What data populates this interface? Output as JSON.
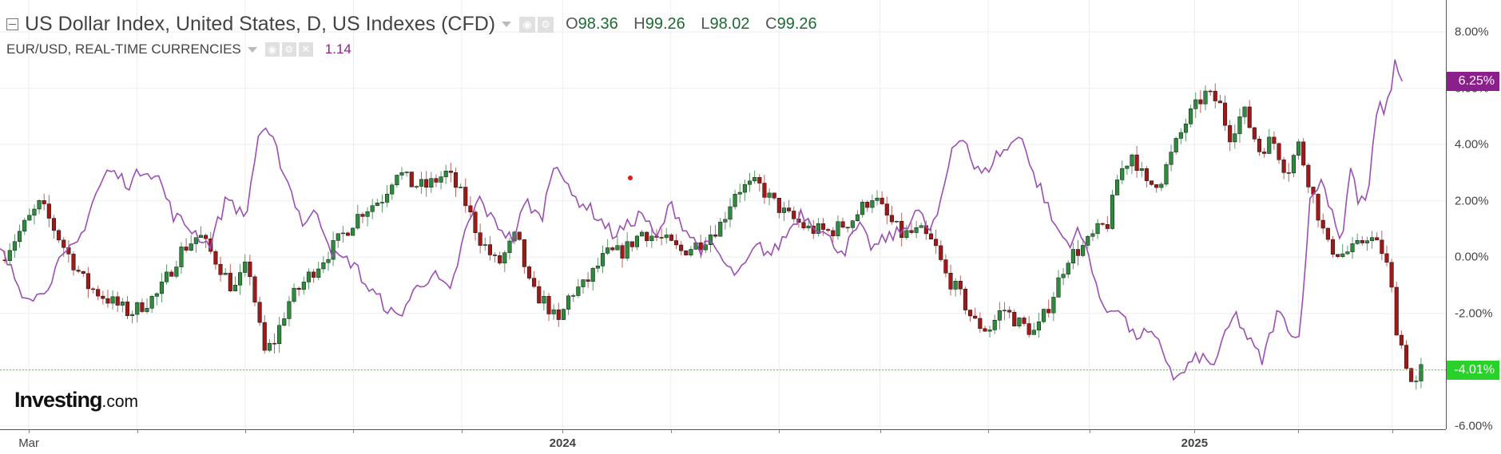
{
  "header": {
    "title": "US Dollar Index, United States, D, US Indexes (CFD)",
    "ohlc": {
      "o_label": "O",
      "o": "98.36",
      "h_label": "H",
      "h": "99.26",
      "l_label": "L",
      "l": "98.02",
      "c_label": "C",
      "c": "99.26"
    }
  },
  "comparison": {
    "label": "EUR/USD, REAL-TIME CURRENCIES",
    "value": "1.14"
  },
  "watermark": {
    "brand": "Investing",
    "suffix": ".com"
  },
  "colors": {
    "up": "#2e8b3e",
    "down": "#a01818",
    "comparison_line": "#9b4fb3",
    "current_line": "#33d633",
    "grid": "#eeeeee"
  },
  "icons": [
    "collapse-icon",
    "settings-icon",
    "hide-icon",
    "close-icon",
    "dropdown-caret-icon"
  ],
  "chart_data": {
    "type": "line",
    "title": "US Dollar Index, United States, D, US Indexes (CFD)",
    "y_scale": "percent",
    "ylim": [
      -6.0,
      8.0
    ],
    "y_ticks": [
      "8.00%",
      "6.00%",
      "4.00%",
      "2.00%",
      "0.00%",
      "-2.00%",
      "-4.00%",
      "-6.00%"
    ],
    "x_ticks": [
      {
        "label": "Mar",
        "t": 0.02,
        "major": false
      },
      {
        "label": "",
        "t": 0.095,
        "major": false
      },
      {
        "label": "",
        "t": 0.17,
        "major": false
      },
      {
        "label": "",
        "t": 0.245,
        "major": false
      },
      {
        "label": "",
        "t": 0.32,
        "major": false
      },
      {
        "label": "2024",
        "t": 0.39,
        "major": true
      },
      {
        "label": "",
        "t": 0.465,
        "major": false
      },
      {
        "label": "",
        "t": 0.54,
        "major": false
      },
      {
        "label": "",
        "t": 0.61,
        "major": false
      },
      {
        "label": "",
        "t": 0.685,
        "major": false
      },
      {
        "label": "",
        "t": 0.755,
        "major": false
      },
      {
        "label": "2025",
        "t": 0.828,
        "major": true
      },
      {
        "label": "",
        "t": 0.9,
        "major": false
      },
      {
        "label": "",
        "t": 0.965,
        "major": false
      }
    ],
    "current_values": {
      "comparison": "6.25%",
      "main": "-4.01%"
    },
    "series": [
      {
        "name": "US Dollar Index",
        "style": "candlestick",
        "anchors": [
          [
            0,
            -0.1
          ],
          [
            0.015,
            1.0
          ],
          [
            0.028,
            1.9
          ],
          [
            0.045,
            0.3
          ],
          [
            0.06,
            -1.0
          ],
          [
            0.075,
            -1.5
          ],
          [
            0.09,
            -2.0
          ],
          [
            0.11,
            -1.3
          ],
          [
            0.125,
            0.2
          ],
          [
            0.138,
            0.8
          ],
          [
            0.152,
            -0.3
          ],
          [
            0.162,
            -1.2
          ],
          [
            0.172,
            -0.2
          ],
          [
            0.183,
            -3.4
          ],
          [
            0.19,
            -3.0
          ],
          [
            0.2,
            -1.6
          ],
          [
            0.215,
            -0.6
          ],
          [
            0.23,
            0.3
          ],
          [
            0.25,
            1.6
          ],
          [
            0.265,
            2.1
          ],
          [
            0.275,
            3.1
          ],
          [
            0.285,
            2.6
          ],
          [
            0.295,
            2.5
          ],
          [
            0.31,
            3.0
          ],
          [
            0.322,
            2.0
          ],
          [
            0.332,
            0.7
          ],
          [
            0.345,
            -0.3
          ],
          [
            0.358,
            0.8
          ],
          [
            0.368,
            -1.2
          ],
          [
            0.378,
            -1.6
          ],
          [
            0.387,
            -2.4
          ],
          [
            0.395,
            -1.3
          ],
          [
            0.405,
            -1.0
          ],
          [
            0.42,
            0.1
          ],
          [
            0.432,
            0.2
          ],
          [
            0.445,
            0.9
          ],
          [
            0.46,
            0.6
          ],
          [
            0.472,
            0.2
          ],
          [
            0.485,
            0.5
          ],
          [
            0.5,
            1.2
          ],
          [
            0.51,
            2.4
          ],
          [
            0.525,
            2.6
          ],
          [
            0.535,
            2.0
          ],
          [
            0.545,
            1.5
          ],
          [
            0.56,
            1.0
          ],
          [
            0.575,
            0.9
          ],
          [
            0.59,
            1.3
          ],
          [
            0.605,
            2.2
          ],
          [
            0.615,
            1.4
          ],
          [
            0.625,
            0.8
          ],
          [
            0.638,
            0.9
          ],
          [
            0.648,
            0.4
          ],
          [
            0.655,
            -0.6
          ],
          [
            0.665,
            -1.3
          ],
          [
            0.675,
            -2.3
          ],
          [
            0.685,
            -2.6
          ],
          [
            0.695,
            -1.8
          ],
          [
            0.705,
            -2.3
          ],
          [
            0.718,
            -2.7
          ],
          [
            0.728,
            -1.6
          ],
          [
            0.74,
            0.0
          ],
          [
            0.752,
            0.4
          ],
          [
            0.762,
            1.0
          ],
          [
            0.768,
            1.2
          ],
          [
            0.775,
            2.9
          ],
          [
            0.785,
            3.7
          ],
          [
            0.795,
            2.5
          ],
          [
            0.805,
            2.8
          ],
          [
            0.815,
            4.0
          ],
          [
            0.823,
            4.9
          ],
          [
            0.835,
            5.8
          ],
          [
            0.845,
            5.5
          ],
          [
            0.852,
            4.3
          ],
          [
            0.862,
            5.2
          ],
          [
            0.873,
            3.8
          ],
          [
            0.882,
            4.2
          ],
          [
            0.892,
            3.0
          ],
          [
            0.9,
            4.0
          ],
          [
            0.91,
            2.2
          ],
          [
            0.92,
            0.4
          ],
          [
            0.93,
            0.1
          ],
          [
            0.94,
            0.3
          ],
          [
            0.948,
            0.8
          ],
          [
            0.958,
            0.2
          ],
          [
            0.963,
            -0.6
          ],
          [
            0.968,
            -2.5
          ],
          [
            0.975,
            -3.8
          ],
          [
            0.98,
            -4.8
          ],
          [
            0.985,
            -4.01
          ]
        ]
      },
      {
        "name": "EUR/USD",
        "style": "line",
        "anchors": [
          [
            0,
            0.3
          ],
          [
            0.015,
            -1.2
          ],
          [
            0.028,
            -1.4
          ],
          [
            0.04,
            -0.3
          ],
          [
            0.055,
            0.6
          ],
          [
            0.065,
            2.1
          ],
          [
            0.075,
            3.1
          ],
          [
            0.09,
            2.6
          ],
          [
            0.1,
            3.2
          ],
          [
            0.11,
            2.8
          ],
          [
            0.12,
            1.5
          ],
          [
            0.135,
            0.9
          ],
          [
            0.145,
            0.4
          ],
          [
            0.158,
            2.2
          ],
          [
            0.17,
            1.3
          ],
          [
            0.18,
            4.6
          ],
          [
            0.19,
            4.0
          ],
          [
            0.2,
            2.6
          ],
          [
            0.21,
            1.2
          ],
          [
            0.22,
            1.6
          ],
          [
            0.232,
            0.0
          ],
          [
            0.245,
            -0.2
          ],
          [
            0.255,
            -1.1
          ],
          [
            0.265,
            -1.6
          ],
          [
            0.275,
            -2.2
          ],
          [
            0.29,
            -1.0
          ],
          [
            0.3,
            -0.6
          ],
          [
            0.312,
            -1.3
          ],
          [
            0.322,
            0.8
          ],
          [
            0.332,
            2.1
          ],
          [
            0.34,
            1.4
          ],
          [
            0.348,
            1.0
          ],
          [
            0.355,
            0.6
          ],
          [
            0.365,
            2.0
          ],
          [
            0.375,
            1.3
          ],
          [
            0.385,
            3.6
          ],
          [
            0.395,
            2.2
          ],
          [
            0.405,
            1.9
          ],
          [
            0.415,
            1.4
          ],
          [
            0.425,
            0.8
          ],
          [
            0.435,
            1.1
          ],
          [
            0.445,
            1.6
          ],
          [
            0.455,
            0.6
          ],
          [
            0.465,
            1.9
          ],
          [
            0.475,
            1.0
          ],
          [
            0.485,
            0.3
          ],
          [
            0.495,
            0.4
          ],
          [
            0.505,
            -0.5
          ],
          [
            0.513,
            -0.6
          ],
          [
            0.525,
            0.4
          ],
          [
            0.535,
            0.1
          ],
          [
            0.545,
            0.8
          ],
          [
            0.555,
            1.6
          ],
          [
            0.565,
            1.2
          ],
          [
            0.575,
            0.6
          ],
          [
            0.585,
            0.2
          ],
          [
            0.595,
            1.1
          ],
          [
            0.605,
            0.3
          ],
          [
            0.615,
            0.7
          ],
          [
            0.625,
            0.9
          ],
          [
            0.635,
            1.7
          ],
          [
            0.645,
            0.9
          ],
          [
            0.652,
            1.8
          ],
          [
            0.66,
            3.9
          ],
          [
            0.668,
            4.4
          ],
          [
            0.675,
            3.2
          ],
          [
            0.682,
            2.9
          ],
          [
            0.69,
            3.6
          ],
          [
            0.7,
            3.9
          ],
          [
            0.708,
            4.5
          ],
          [
            0.715,
            3.0
          ],
          [
            0.722,
            2.4
          ],
          [
            0.73,
            1.2
          ],
          [
            0.74,
            0.5
          ],
          [
            0.748,
            0.9
          ],
          [
            0.756,
            -0.1
          ],
          [
            0.765,
            -2.0
          ],
          [
            0.775,
            -1.7
          ],
          [
            0.785,
            -2.8
          ],
          [
            0.795,
            -2.7
          ],
          [
            0.805,
            -3.2
          ],
          [
            0.815,
            -4.4
          ],
          [
            0.825,
            -3.8
          ],
          [
            0.832,
            -3.5
          ],
          [
            0.84,
            -3.9
          ],
          [
            0.848,
            -3.0
          ],
          [
            0.856,
            -2.0
          ],
          [
            0.865,
            -2.9
          ],
          [
            0.875,
            -3.7
          ],
          [
            0.885,
            -2.0
          ],
          [
            0.893,
            -2.4
          ],
          [
            0.9,
            -3.1
          ],
          [
            0.908,
            1.9
          ],
          [
            0.915,
            2.8
          ],
          [
            0.922,
            1.9
          ],
          [
            0.93,
            0.5
          ],
          [
            0.936,
            3.2
          ],
          [
            0.942,
            1.9
          ],
          [
            0.948,
            2.1
          ],
          [
            0.955,
            5.4
          ],
          [
            0.961,
            5.2
          ],
          [
            0.967,
            6.9
          ],
          [
            0.972,
            6.25
          ]
        ]
      }
    ]
  }
}
